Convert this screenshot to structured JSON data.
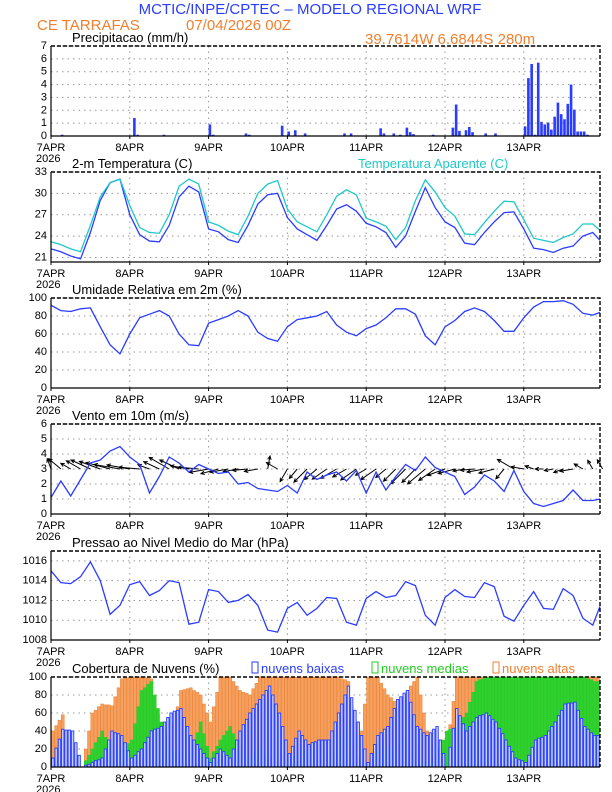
{
  "header": {
    "title": "MCTIC/INPE/CPTEC – MODELO REGIONAL WRF",
    "location": "CE TARRAFAS",
    "run": "07/04/2026 00Z",
    "coords": "39.7614W 6.6844S 280m"
  },
  "colors": {
    "title": "#2a3cff",
    "orange": "#f08030",
    "blue": "#2a3cff",
    "cyan": "#20c8c8",
    "green": "#22cc22"
  },
  "x_axis": {
    "labels": [
      "7APR",
      "8APR",
      "9APR",
      "10APR",
      "11APR",
      "12APR",
      "13APR"
    ],
    "year": "2026",
    "step_hours": 3
  },
  "chart_data": [
    {
      "id": "precip",
      "type": "bar",
      "title": "Precipitacao (mm/h)",
      "ylim": [
        0,
        7
      ],
      "yticks": [
        "0",
        "1",
        "2",
        "3",
        "4",
        "5",
        "6",
        "7"
      ],
      "grid": true,
      "bars_hour_value": [
        [
          3,
          0.1
        ],
        [
          25,
          1.4
        ],
        [
          26,
          0.1
        ],
        [
          34,
          0.1
        ],
        [
          48,
          0.9
        ],
        [
          49,
          0.1
        ],
        [
          59,
          0.2
        ],
        [
          60,
          0.1
        ],
        [
          70,
          0.8
        ],
        [
          72,
          0.35
        ],
        [
          74,
          0.45
        ],
        [
          77,
          0.2
        ],
        [
          89,
          0.2
        ],
        [
          91,
          0.2
        ],
        [
          100,
          0.6
        ],
        [
          101,
          0.2
        ],
        [
          104,
          0.2
        ],
        [
          106,
          0.1
        ],
        [
          108,
          0.65
        ],
        [
          109,
          0.3
        ],
        [
          110,
          0.15
        ],
        [
          116,
          0.1
        ],
        [
          122,
          0.65
        ],
        [
          123,
          2.45
        ],
        [
          124,
          0.4
        ],
        [
          126,
          0.45
        ],
        [
          127,
          0.7
        ],
        [
          128,
          0.3
        ],
        [
          132,
          0.2
        ],
        [
          135,
          0.2
        ],
        [
          144,
          0.75
        ],
        [
          145,
          4.5
        ],
        [
          146,
          5.6
        ],
        [
          147,
          0.1
        ],
        [
          148,
          5.7
        ],
        [
          149,
          1.1
        ],
        [
          150,
          0.9
        ],
        [
          151,
          1.05
        ],
        [
          152,
          0.5
        ],
        [
          153,
          1.5
        ],
        [
          154,
          2.6
        ],
        [
          155,
          1.7
        ],
        [
          156,
          1.3
        ],
        [
          157,
          2.5
        ],
        [
          158,
          4.0
        ],
        [
          159,
          2.05
        ],
        [
          160,
          0.35
        ],
        [
          161,
          0.35
        ],
        [
          162,
          0.35
        ],
        [
          163,
          0.1
        ]
      ]
    },
    {
      "id": "temp",
      "type": "line",
      "title": "2-m Temperatura (C)",
      "ylim": [
        20.36,
        33
      ],
      "yticks": [
        "21",
        "24",
        "27",
        "30",
        "33"
      ],
      "grid": true,
      "series": [
        {
          "name": "2-m Temperatura (C)",
          "color": "#2a3cff",
          "values": [
            22.2,
            21.8,
            21.2,
            20.8,
            24.5,
            29.0,
            31.5,
            32.0,
            27.0,
            24.2,
            23.3,
            23.2,
            25.5,
            29.5,
            31.0,
            30.2,
            25.0,
            24.6,
            23.5,
            23.1,
            25.5,
            28.5,
            29.8,
            30.0,
            26.6,
            25.0,
            24.2,
            23.4,
            25.5,
            27.8,
            28.4,
            27.5,
            25.8,
            25.3,
            24.5,
            22.4,
            24.0,
            27.5,
            30.8,
            28.0,
            26.0,
            25.2,
            23.0,
            22.8,
            24.5,
            26.0,
            27.3,
            27.4,
            25.0,
            22.3,
            22.1,
            21.7,
            22.3,
            22.6,
            24.0,
            24.5,
            23.4
          ]
        },
        {
          "name": "Temperatura Aparente (C)",
          "color": "#20c8c8",
          "values": [
            23.2,
            22.8,
            22.2,
            21.8,
            25.5,
            29.5,
            31.5,
            32.0,
            28.3,
            25.2,
            24.5,
            24.4,
            27.0,
            31.0,
            32.0,
            31.3,
            26.0,
            25.5,
            24.7,
            24.2,
            26.8,
            30.0,
            31.3,
            31.8,
            27.8,
            26.0,
            25.3,
            24.6,
            27.0,
            29.6,
            30.5,
            29.8,
            26.5,
            26.0,
            25.4,
            23.5,
            25.2,
            29.0,
            31.9,
            30.2,
            28.0,
            26.8,
            24.3,
            24.2,
            25.9,
            27.5,
            28.9,
            28.8,
            26.3,
            23.7,
            23.4,
            23.1,
            23.8,
            24.3,
            25.7,
            25.7,
            24.8
          ]
        }
      ]
    },
    {
      "id": "rh",
      "type": "line",
      "title": "Umidade Relativa em 2m (%)",
      "ylim": [
        0,
        100
      ],
      "yticks": [
        "0",
        "20",
        "40",
        "60",
        "80",
        "100"
      ],
      "grid": true,
      "series": [
        {
          "color": "#2a3cff",
          "values": [
            92,
            86,
            85,
            88,
            89,
            68,
            48,
            38,
            60,
            78,
            82,
            86,
            80,
            60,
            48,
            47,
            72,
            76,
            80,
            86,
            80,
            62,
            55,
            52,
            68,
            76,
            78,
            80,
            85,
            70,
            62,
            58,
            66,
            70,
            78,
            88,
            88,
            82,
            58,
            48,
            68,
            75,
            85,
            89,
            85,
            75,
            63,
            63,
            78,
            90,
            96,
            96,
            97,
            93,
            83,
            81,
            84
          ]
        }
      ]
    },
    {
      "id": "wind",
      "type": "line",
      "title": "Vento em 10m (m/s)",
      "ylim": [
        0,
        6
      ],
      "yticks": [
        "0",
        "1",
        "2",
        "3",
        "4",
        "5",
        "6"
      ],
      "grid": true,
      "series": [
        {
          "color": "#2a3cff",
          "values": [
            1.1,
            2.2,
            1.2,
            2.3,
            3.4,
            3.6,
            4.2,
            4.5,
            3.8,
            3.3,
            1.4,
            2.5,
            3.8,
            3.4,
            2.8,
            3.3,
            3.0,
            2.7,
            2.8,
            2.0,
            2.1,
            1.7,
            1.6,
            1.5,
            1.9,
            1.4,
            2.8,
            2.3,
            2.6,
            2.8,
            2.2,
            2.9,
            1.4,
            2.8,
            1.6,
            2.5,
            3.3,
            2.9,
            3.8,
            3.1,
            2.8,
            2.5,
            1.3,
            1.8,
            2.6,
            2.2,
            1.5,
            2.9,
            1.5,
            0.7,
            0.5,
            0.7,
            0.9,
            1.6,
            0.9,
            0.9,
            1.0
          ]
        }
      ],
      "direction_from_deg": [
        160,
        130,
        120,
        120,
        115,
        110,
        105,
        100,
        100,
        95,
        110,
        115,
        120,
        115,
        100,
        95,
        80,
        75,
        80,
        80,
        85,
        80,
        190,
        120,
        30,
        40,
        45,
        50,
        55,
        60,
        60,
        55,
        60,
        55,
        50,
        45,
        45,
        45,
        50,
        55,
        70,
        75,
        80,
        85,
        80,
        75,
        40,
        120,
        100,
        110,
        90,
        80,
        70,
        80,
        120,
        150,
        150
      ]
    },
    {
      "id": "pressure",
      "type": "line",
      "title": "Pressao ao Nivel Medio do Mar (hPa)",
      "ylim": [
        1008,
        1017
      ],
      "yticks": [
        "1008",
        "1010",
        "1012",
        "1014",
        "1016"
      ],
      "grid": true,
      "series": [
        {
          "color": "#2a3cff",
          "values": [
            1015.0,
            1013.8,
            1013.7,
            1014.4,
            1015.9,
            1014.0,
            1010.6,
            1011.5,
            1013.6,
            1013.9,
            1012.5,
            1013.0,
            1014.0,
            1013.8,
            1009.6,
            1009.8,
            1013.1,
            1012.9,
            1011.8,
            1012.0,
            1012.6,
            1011.5,
            1009.0,
            1008.8,
            1011.2,
            1011.8,
            1010.5,
            1011.2,
            1012.3,
            1012.2,
            1009.8,
            1009.5,
            1012.2,
            1012.9,
            1012.3,
            1012.5,
            1013.9,
            1013.5,
            1010.5,
            1009.5,
            1012.3,
            1013.1,
            1012.4,
            1012.3,
            1013.8,
            1013.4,
            1010.4,
            1009.9,
            1011.5,
            1012.9,
            1011.2,
            1011.1,
            1013.2,
            1012.5,
            1010.2,
            1009.5,
            1011.4
          ]
        }
      ]
    },
    {
      "id": "clouds",
      "type": "bar",
      "title": "Cobertura de Nuvens (%)",
      "ylim": [
        0,
        100
      ],
      "yticks": [
        "0",
        "20",
        "40",
        "60",
        "80",
        "100"
      ],
      "grid": true,
      "legend": "top",
      "series": [
        {
          "name": "nuvens altas",
          "color": "#f08030",
          "values": [
            40,
            58,
            0,
            0,
            60,
            70,
            68,
            98,
            100,
            100,
            98,
            40,
            30,
            85,
            88,
            80,
            50,
            100,
            100,
            85,
            80,
            100,
            100,
            100,
            100,
            100,
            100,
            100,
            100,
            100,
            95,
            10,
            100,
            100,
            80,
            70,
            85,
            100,
            40,
            0,
            20,
            100,
            100,
            100,
            100,
            100,
            100,
            100,
            100,
            100,
            100,
            100,
            100,
            100,
            100,
            100
          ]
        },
        {
          "name": "nuvens medias",
          "color": "#22cc22",
          "values": [
            0,
            0,
            0,
            0,
            20,
            40,
            20,
            18,
            30,
            85,
            95,
            50,
            20,
            20,
            15,
            50,
            10,
            30,
            45,
            20,
            10,
            20,
            10,
            0,
            5,
            15,
            20,
            10,
            10,
            30,
            45,
            5,
            0,
            30,
            20,
            25,
            30,
            5,
            5,
            10,
            40,
            45,
            60,
            95,
            100,
            100,
            100,
            100,
            100,
            100,
            100,
            100,
            100,
            100,
            100,
            95
          ]
        },
        {
          "name": "nuvens baixas",
          "color": "#2a3cff",
          "values": [
            10,
            42,
            40,
            0,
            5,
            10,
            40,
            35,
            10,
            20,
            40,
            45,
            60,
            65,
            35,
            20,
            5,
            20,
            10,
            40,
            60,
            75,
            90,
            60,
            15,
            40,
            25,
            30,
            30,
            60,
            90,
            50,
            5,
            35,
            45,
            75,
            85,
            45,
            35,
            45,
            0,
            65,
            40,
            55,
            60,
            50,
            30,
            10,
            5,
            30,
            35,
            50,
            70,
            72,
            45,
            35
          ]
        }
      ]
    }
  ]
}
